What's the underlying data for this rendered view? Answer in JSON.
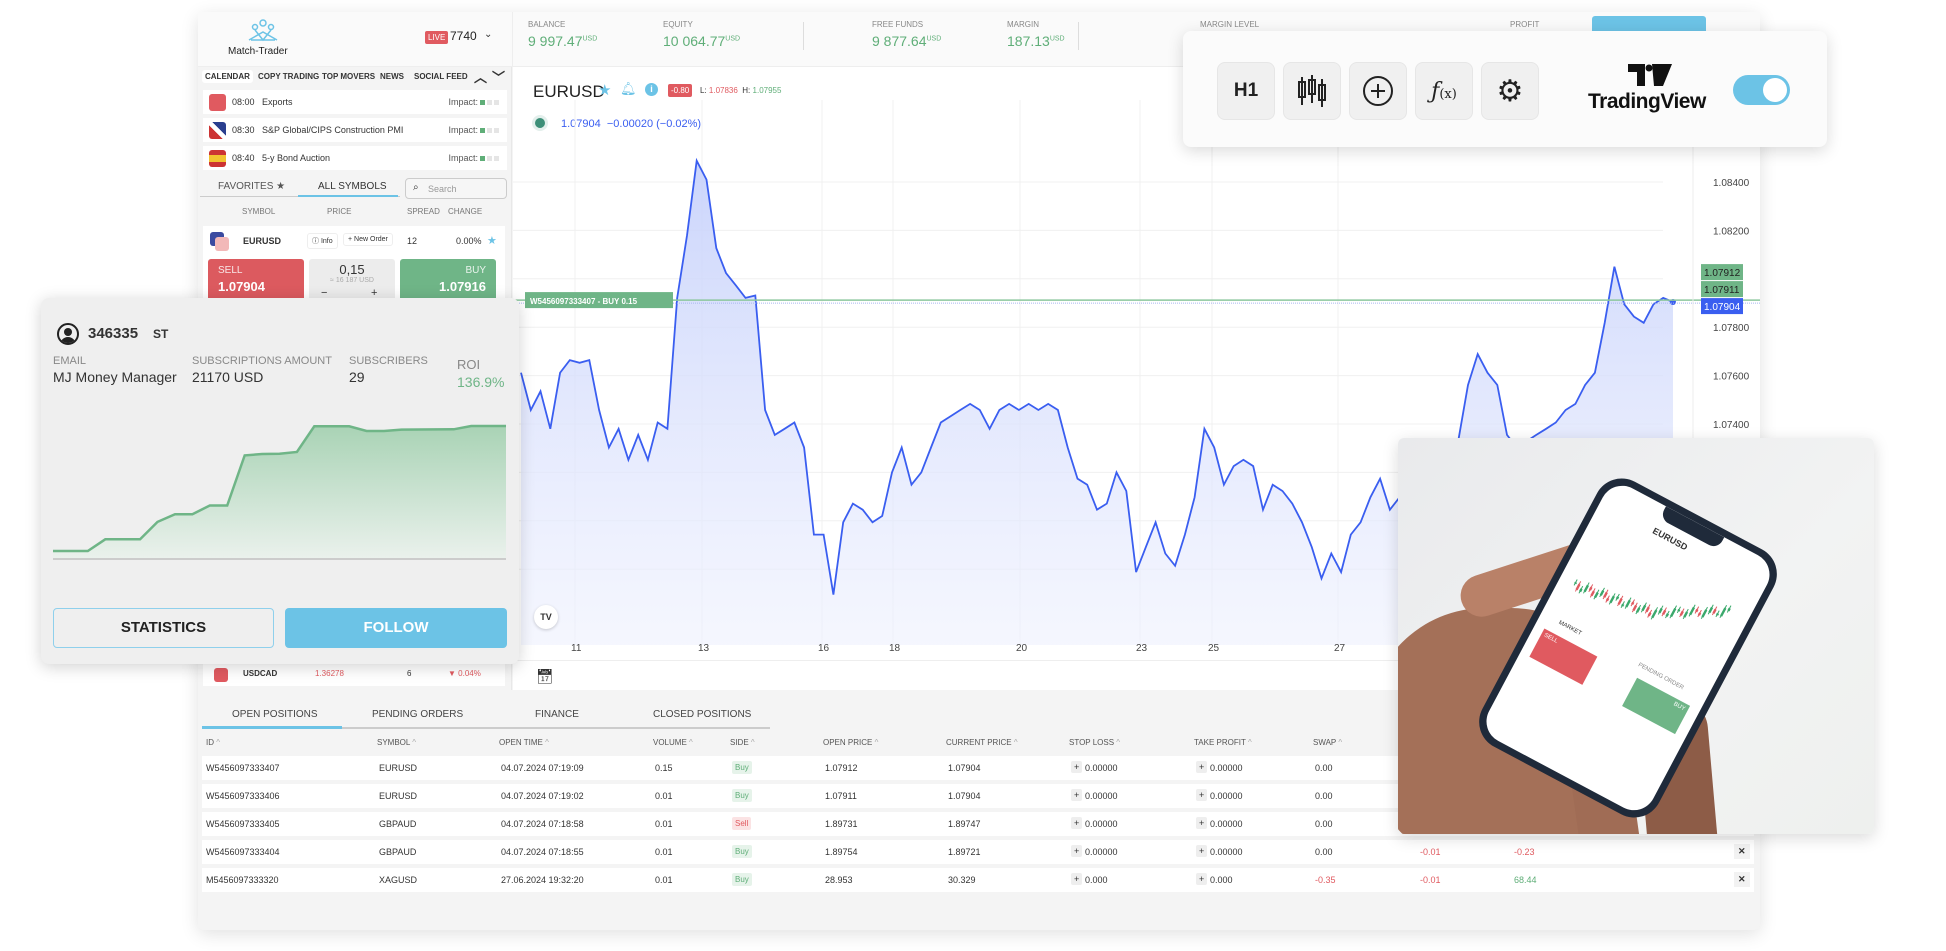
{
  "brand": {
    "name": "Match-Trader",
    "account_badge": "LIVE",
    "account_id": "7740"
  },
  "header": {
    "metrics": [
      {
        "label": "BALANCE",
        "value": "9 997.47",
        "unit": "USD"
      },
      {
        "label": "EQUITY",
        "value": "10 064.77",
        "unit": "USD"
      },
      {
        "label": "FREE FUNDS",
        "value": "9 877.64",
        "unit": "USD"
      },
      {
        "label": "MARGIN",
        "value": "187.13",
        "unit": "USD"
      }
    ],
    "margin_level_label": "MARGIN LEVEL",
    "profit_label": "PROFIT"
  },
  "sidebar": {
    "tabs": [
      "CALENDAR",
      "COPY TRADING",
      "TOP MOVERS",
      "NEWS",
      "SOCIAL FEED"
    ],
    "calendar": [
      {
        "time": "08:00",
        "event": "Exports",
        "impact_label": "Impact:",
        "impact": 1,
        "flag": "turkey"
      },
      {
        "time": "08:30",
        "event": "S&P Global/CIPS Construction PMI",
        "impact_label": "Impact:",
        "impact": 1,
        "flag": "uk"
      },
      {
        "time": "08:40",
        "event": "5-y Bond Auction",
        "impact_label": "Impact:",
        "impact": 1,
        "flag": "spain"
      }
    ],
    "favorites_label": "FAVORITES",
    "all_symbols_label": "ALL SYMBOLS",
    "search_placeholder": "Search",
    "columns": [
      "SYMBOL",
      "PRICE",
      "SPREAD",
      "CHANGE"
    ],
    "symbol": {
      "name": "EURUSD",
      "info_label": "Info",
      "new_order_label": "New Order",
      "spread": "12",
      "change": "0.00%",
      "sell_label": "SELL",
      "sell_price": "1.07904",
      "volume": "0,15",
      "volume_usd": "≈ 16 187 USD",
      "minus": "−",
      "plus": "+",
      "buy_label": "BUY",
      "buy_price": "1.07916"
    },
    "symbol2": {
      "name": "USDCAD",
      "price": "1.36278",
      "spread": "6",
      "change": "▼ 0.04%"
    }
  },
  "chart": {
    "symbol": "EURUSD",
    "change_badge": "-0.80",
    "low_label": "L:",
    "low": "1.07836",
    "high_label": "H:",
    "high": "1.07955",
    "legend": "1.07904  −0.00020 (−0.02%)",
    "position_label": "W5456097333407 - BUY   0.15",
    "position_price": 1.07912,
    "y_ticks": [
      "1.08400",
      "1.08200",
      "1.07800",
      "1.07600",
      "1.07400"
    ],
    "price_tags": [
      {
        "value": "1.07912",
        "color": "#6fb587"
      },
      {
        "value": "1.07911",
        "color": "#6fb587"
      },
      {
        "value": "1.07904",
        "color": "#3a5ef0"
      }
    ],
    "x_ticks": [
      "11",
      "13",
      "16",
      "18",
      "20",
      "23",
      "25",
      "27"
    ],
    "line_color": "#3a5ef0",
    "price_series": [
      1.07612,
      1.07458,
      1.07535,
      1.0738,
      1.07612,
      1.07664,
      1.07653,
      1.07664,
      1.07458,
      1.07303,
      1.0738,
      1.07252,
      1.07355,
      1.07252,
      1.07406,
      1.0738,
      1.07921,
      1.08179,
      1.08488,
      1.0841,
      1.08127,
      1.08024,
      1.07973,
      1.07921,
      1.07931,
      1.07458,
      1.07355,
      1.0738,
      1.07406,
      1.07303,
      1.06943,
      1.06943,
      1.06695,
      1.06994,
      1.07071,
      1.07046,
      1.06994,
      1.0702,
      1.072,
      1.07303,
      1.07149,
      1.072,
      1.07303,
      1.07406,
      1.07432,
      1.07458,
      1.07483,
      1.07458,
      1.0738,
      1.07458,
      1.07483,
      1.07458,
      1.07483,
      1.07458,
      1.07483,
      1.07458,
      1.07303,
      1.07174,
      1.07149,
      1.07046,
      1.07071,
      1.072,
      1.07123,
      1.06788,
      1.06891,
      1.06994,
      1.06865,
      1.06814,
      1.06943,
      1.07097,
      1.0738,
      1.07303,
      1.07149,
      1.07226,
      1.07252,
      1.07226,
      1.07046,
      1.07149,
      1.07123,
      1.07071,
      1.06994,
      1.06891,
      1.06762,
      1.06865,
      1.06788,
      1.06943,
      1.06994,
      1.07097,
      1.07174,
      1.07046,
      1.07097,
      1.06994,
      1.06994,
      1.07046,
      1.07097,
      1.07252,
      1.07329,
      1.07561,
      1.07689,
      1.07612,
      1.07561,
      1.07355,
      1.07303,
      1.07329,
      1.07355,
      1.0738,
      1.07406,
      1.07458,
      1.07483,
      1.07561,
      1.07612,
      1.07818,
      1.0805,
      1.07895,
      1.07844,
      1.07818,
      1.07895,
      1.07921,
      1.07904
    ]
  },
  "toolbar": {
    "timeframe": "H1",
    "logo_text": "TradingView",
    "toggle_on": true
  },
  "copy_panel": {
    "account": "346335",
    "type": "ST",
    "email_label": "EMAIL",
    "email": "MJ Money Manager",
    "amount_label": "SUBSCRIPTIONS AMOUNT",
    "amount": "21170 USD",
    "subscribers_label": "SUBSCRIBERS",
    "subscribers": "29",
    "roi_label": "ROI",
    "roi": "136.9%",
    "statistics_label": "STATISTICS",
    "follow_label": "FOLLOW",
    "equity_curve_roi_pct": [
      6.3,
      6.3,
      6.3,
      18.5,
      18.5,
      18.5,
      36.7,
      44.7,
      44.7,
      53.8,
      53.8,
      106.2,
      107.6,
      107.9,
      109.7,
      136.6,
      136.6,
      136.6,
      131.7,
      131.7,
      133.1,
      133.2,
      133.3,
      133.4,
      136.9,
      136.9,
      136.9
    ]
  },
  "positions": {
    "tabs": [
      "OPEN POSITIONS",
      "PENDING ORDERS",
      "FINANCE",
      "CLOSED POSITIONS"
    ],
    "columns": [
      "ID",
      "SYMBOL",
      "OPEN TIME",
      "VOLUME",
      "SIDE",
      "OPEN PRICE",
      "CURRENT PRICE",
      "STOP LOSS",
      "TAKE PROFIT",
      "SWAP"
    ],
    "rows": [
      {
        "id": "W5456097333407",
        "symbol": "EURUSD",
        "time": "04.07.2024 07:19:09",
        "volume": "0.15",
        "side": "Buy",
        "open": "1.07912",
        "current": "1.07904",
        "sl": "0.00000",
        "tp": "0.00000",
        "swap": "0.00",
        "c1": "",
        "c2": ""
      },
      {
        "id": "W5456097333406",
        "symbol": "EURUSD",
        "time": "04.07.2024 07:19:02",
        "volume": "0.01",
        "side": "Buy",
        "open": "1.07911",
        "current": "1.07904",
        "sl": "0.00000",
        "tp": "0.00000",
        "swap": "0.00",
        "c1": "",
        "c2": ""
      },
      {
        "id": "W5456097333405",
        "symbol": "GBPAUD",
        "time": "04.07.2024 07:18:58",
        "volume": "0.01",
        "side": "Sell",
        "open": "1.89731",
        "current": "1.89747",
        "sl": "0.00000",
        "tp": "0.00000",
        "swap": "0.00",
        "c1": "",
        "c2": ""
      },
      {
        "id": "W5456097333404",
        "symbol": "GBPAUD",
        "time": "04.07.2024 07:18:55",
        "volume": "0.01",
        "side": "Buy",
        "open": "1.89754",
        "current": "1.89721",
        "sl": "0.00000",
        "tp": "0.00000",
        "swap": "0.00",
        "c1": "-0.01",
        "c2": "-0.23"
      },
      {
        "id": "M5456097333320",
        "symbol": "XAGUSD",
        "time": "27.06.2024 19:32:20",
        "volume": "0.01",
        "side": "Buy",
        "open": "28.953",
        "current": "30.329",
        "sl": "0.000",
        "tp": "0.000",
        "swap": "-0.35",
        "c1": "-0.01",
        "c2": "68.44"
      }
    ]
  },
  "phone": {
    "symbol": "EURUSD",
    "sell": "SELL",
    "buy": "BUY",
    "market": "MARKET",
    "pending": "PENDING ORDER"
  },
  "colors": {
    "accent": "#6cc3e6",
    "buy": "#6fb587",
    "sell": "#e05a60",
    "line": "#3a5ef0"
  }
}
